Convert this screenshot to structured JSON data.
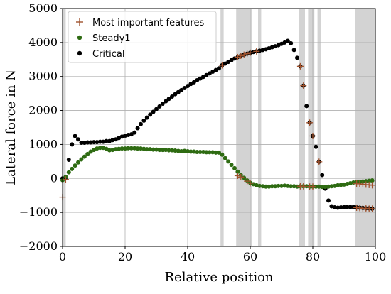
{
  "chart_data": {
    "type": "scatter",
    "xlabel": "Relative position",
    "ylabel": "Lateral force in N",
    "xlim": [
      0,
      100
    ],
    "ylim": [
      -2000,
      5000
    ],
    "x_ticks": [
      0,
      20,
      40,
      60,
      80,
      100
    ],
    "y_ticks": [
      -2000,
      -1000,
      0,
      1000,
      2000,
      3000,
      4000,
      5000
    ],
    "grid": true,
    "legend_position": "top-left",
    "highlight_bands": [
      [
        0,
        1
      ],
      [
        50.5,
        51.5
      ],
      [
        55.5,
        60.5
      ],
      [
        62.5,
        63.5
      ],
      [
        75.5,
        77.5
      ],
      [
        78.5,
        80.5
      ],
      [
        81.5,
        82.5
      ],
      [
        93.5,
        100
      ]
    ],
    "series": [
      {
        "name": "Critical",
        "marker": "dot",
        "color": "#000000",
        "x": [
          0,
          1,
          2,
          3,
          4,
          5,
          6,
          7,
          8,
          9,
          10,
          11,
          12,
          13,
          14,
          15,
          16,
          17,
          18,
          19,
          20,
          21,
          22,
          23,
          24,
          25,
          26,
          27,
          28,
          29,
          30,
          31,
          32,
          33,
          34,
          35,
          36,
          37,
          38,
          39,
          40,
          41,
          42,
          43,
          44,
          45,
          46,
          47,
          48,
          49,
          50,
          51,
          52,
          53,
          54,
          55,
          56,
          57,
          58,
          59,
          60,
          61,
          62,
          63,
          64,
          65,
          66,
          67,
          68,
          69,
          70,
          71,
          72,
          73,
          74,
          75,
          76,
          77,
          78,
          79,
          80,
          81,
          82,
          83,
          84,
          85,
          86,
          87,
          88,
          89,
          90,
          91,
          92,
          93,
          94,
          95,
          96,
          97,
          98,
          99
        ],
        "y": [
          0,
          30,
          550,
          1000,
          1250,
          1150,
          1050,
          1050,
          1060,
          1060,
          1070,
          1070,
          1080,
          1080,
          1100,
          1100,
          1130,
          1150,
          1190,
          1230,
          1260,
          1280,
          1300,
          1350,
          1480,
          1600,
          1700,
          1790,
          1880,
          1960,
          2040,
          2120,
          2200,
          2270,
          2340,
          2410,
          2480,
          2540,
          2600,
          2660,
          2720,
          2780,
          2830,
          2890,
          2940,
          2990,
          3040,
          3090,
          3140,
          3190,
          3240,
          3330,
          3380,
          3430,
          3480,
          3530,
          3570,
          3610,
          3640,
          3670,
          3700,
          3720,
          3740,
          3760,
          3780,
          3800,
          3830,
          3860,
          3890,
          3920,
          3960,
          4000,
          4050,
          3980,
          3780,
          3550,
          3300,
          2730,
          2130,
          1640,
          1250,
          930,
          490,
          100,
          -300,
          -650,
          -820,
          -850,
          -860,
          -850,
          -840,
          -840,
          -840,
          -840,
          -850,
          -860,
          -870,
          -880,
          -880,
          -890
        ]
      },
      {
        "name": "Steady1",
        "marker": "dot",
        "color": "#2e6b12",
        "x": [
          0,
          1,
          2,
          3,
          4,
          5,
          6,
          7,
          8,
          9,
          10,
          11,
          12,
          13,
          14,
          15,
          16,
          17,
          18,
          19,
          20,
          21,
          22,
          23,
          24,
          25,
          26,
          27,
          28,
          29,
          30,
          31,
          32,
          33,
          34,
          35,
          36,
          37,
          38,
          39,
          40,
          41,
          42,
          43,
          44,
          45,
          46,
          47,
          48,
          49,
          50,
          51,
          52,
          53,
          54,
          55,
          56,
          57,
          58,
          59,
          60,
          61,
          62,
          63,
          64,
          65,
          66,
          67,
          68,
          69,
          70,
          71,
          72,
          73,
          74,
          75,
          76,
          77,
          78,
          79,
          80,
          81,
          82,
          83,
          84,
          85,
          86,
          87,
          88,
          89,
          90,
          91,
          92,
          93,
          94,
          95,
          96,
          97,
          98,
          99
        ],
        "y": [
          -50,
          50,
          180,
          280,
          380,
          470,
          560,
          640,
          720,
          790,
          840,
          880,
          900,
          900,
          870,
          830,
          840,
          860,
          870,
          880,
          880,
          890,
          890,
          890,
          880,
          880,
          870,
          860,
          860,
          850,
          850,
          840,
          840,
          840,
          830,
          830,
          820,
          810,
          800,
          810,
          800,
          790,
          790,
          780,
          780,
          780,
          770,
          770,
          770,
          760,
          760,
          700,
          600,
          500,
          400,
          300,
          200,
          100,
          20,
          -60,
          -130,
          -170,
          -200,
          -220,
          -230,
          -240,
          -240,
          -230,
          -230,
          -220,
          -220,
          -210,
          -220,
          -230,
          -230,
          -240,
          -230,
          -230,
          -230,
          -240,
          -240,
          -240,
          -240,
          -250,
          -250,
          -240,
          -230,
          -220,
          -200,
          -190,
          -180,
          -160,
          -140,
          -120,
          -110,
          -100,
          -90,
          -80,
          -70,
          -60
        ]
      },
      {
        "name": "Most important features",
        "marker": "plus",
        "color": "#a0522d",
        "x": [
          0,
          1,
          51,
          56,
          57,
          58,
          59,
          60,
          62,
          76,
          77,
          79,
          80,
          82,
          94,
          95,
          96,
          97,
          98,
          99,
          94,
          95,
          96,
          97,
          98,
          99,
          56,
          57,
          59,
          60,
          76,
          77,
          79,
          80
        ],
        "y": [
          -550,
          -30,
          3330,
          3570,
          3610,
          3640,
          3670,
          3700,
          3740,
          3300,
          2730,
          1640,
          1250,
          490,
          -860,
          -870,
          -880,
          -880,
          -890,
          -890,
          -150,
          -160,
          -170,
          -180,
          -190,
          -200,
          80,
          40,
          -80,
          -140,
          -230,
          -230,
          -240,
          -240
        ]
      }
    ]
  }
}
